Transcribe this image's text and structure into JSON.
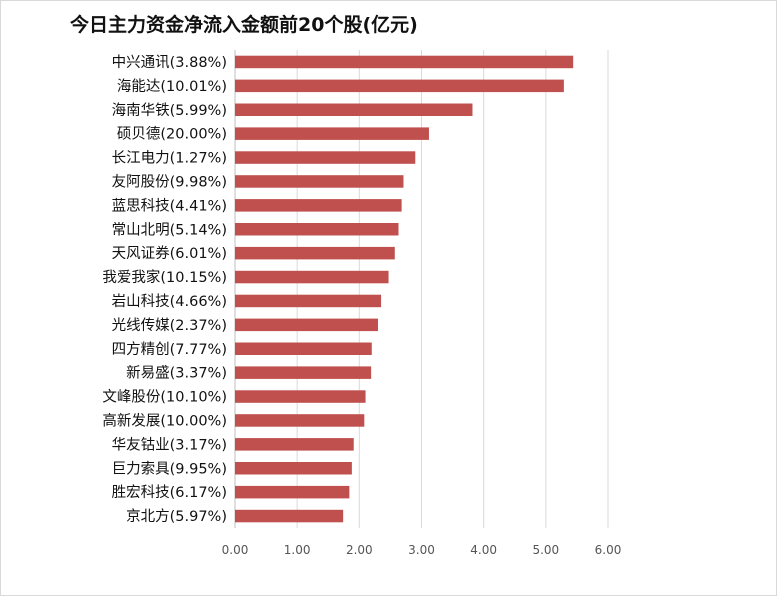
{
  "chart_data": {
    "type": "bar",
    "orientation": "horizontal",
    "title": "今日主力资金净流入金额前20个股(亿元)",
    "xlabel": "",
    "ylabel": "",
    "xlim": [
      0,
      6
    ],
    "x_ticks": [
      "0.00",
      "1.00",
      "2.00",
      "3.00",
      "4.00",
      "5.00",
      "6.00"
    ],
    "grid": true,
    "legend": "none",
    "bar_color": "#C0504D",
    "categories": [
      "中兴通讯(3.88%)",
      "海能达(10.01%)",
      "海南华铁(5.99%)",
      "硕贝德(20.00%)",
      "长江电力(1.27%)",
      "友阿股份(9.98%)",
      "蓝思科技(4.41%)",
      "常山北明(5.14%)",
      "天风证券(6.01%)",
      "我爱我家(10.15%)",
      "岩山科技(4.66%)",
      "光线传媒(2.37%)",
      "四方精创(7.77%)",
      "新易盛(3.37%)",
      "文峰股份(10.10%)",
      "高新发展(10.00%)",
      "华友钴业(3.17%)",
      "巨力索具(9.95%)",
      "胜宏科技(6.17%)",
      "京北方(5.97%)"
    ],
    "values": [
      5.44,
      5.29,
      3.82,
      3.12,
      2.9,
      2.71,
      2.68,
      2.63,
      2.57,
      2.47,
      2.35,
      2.3,
      2.2,
      2.19,
      2.1,
      2.08,
      1.91,
      1.88,
      1.84,
      1.74
    ]
  }
}
